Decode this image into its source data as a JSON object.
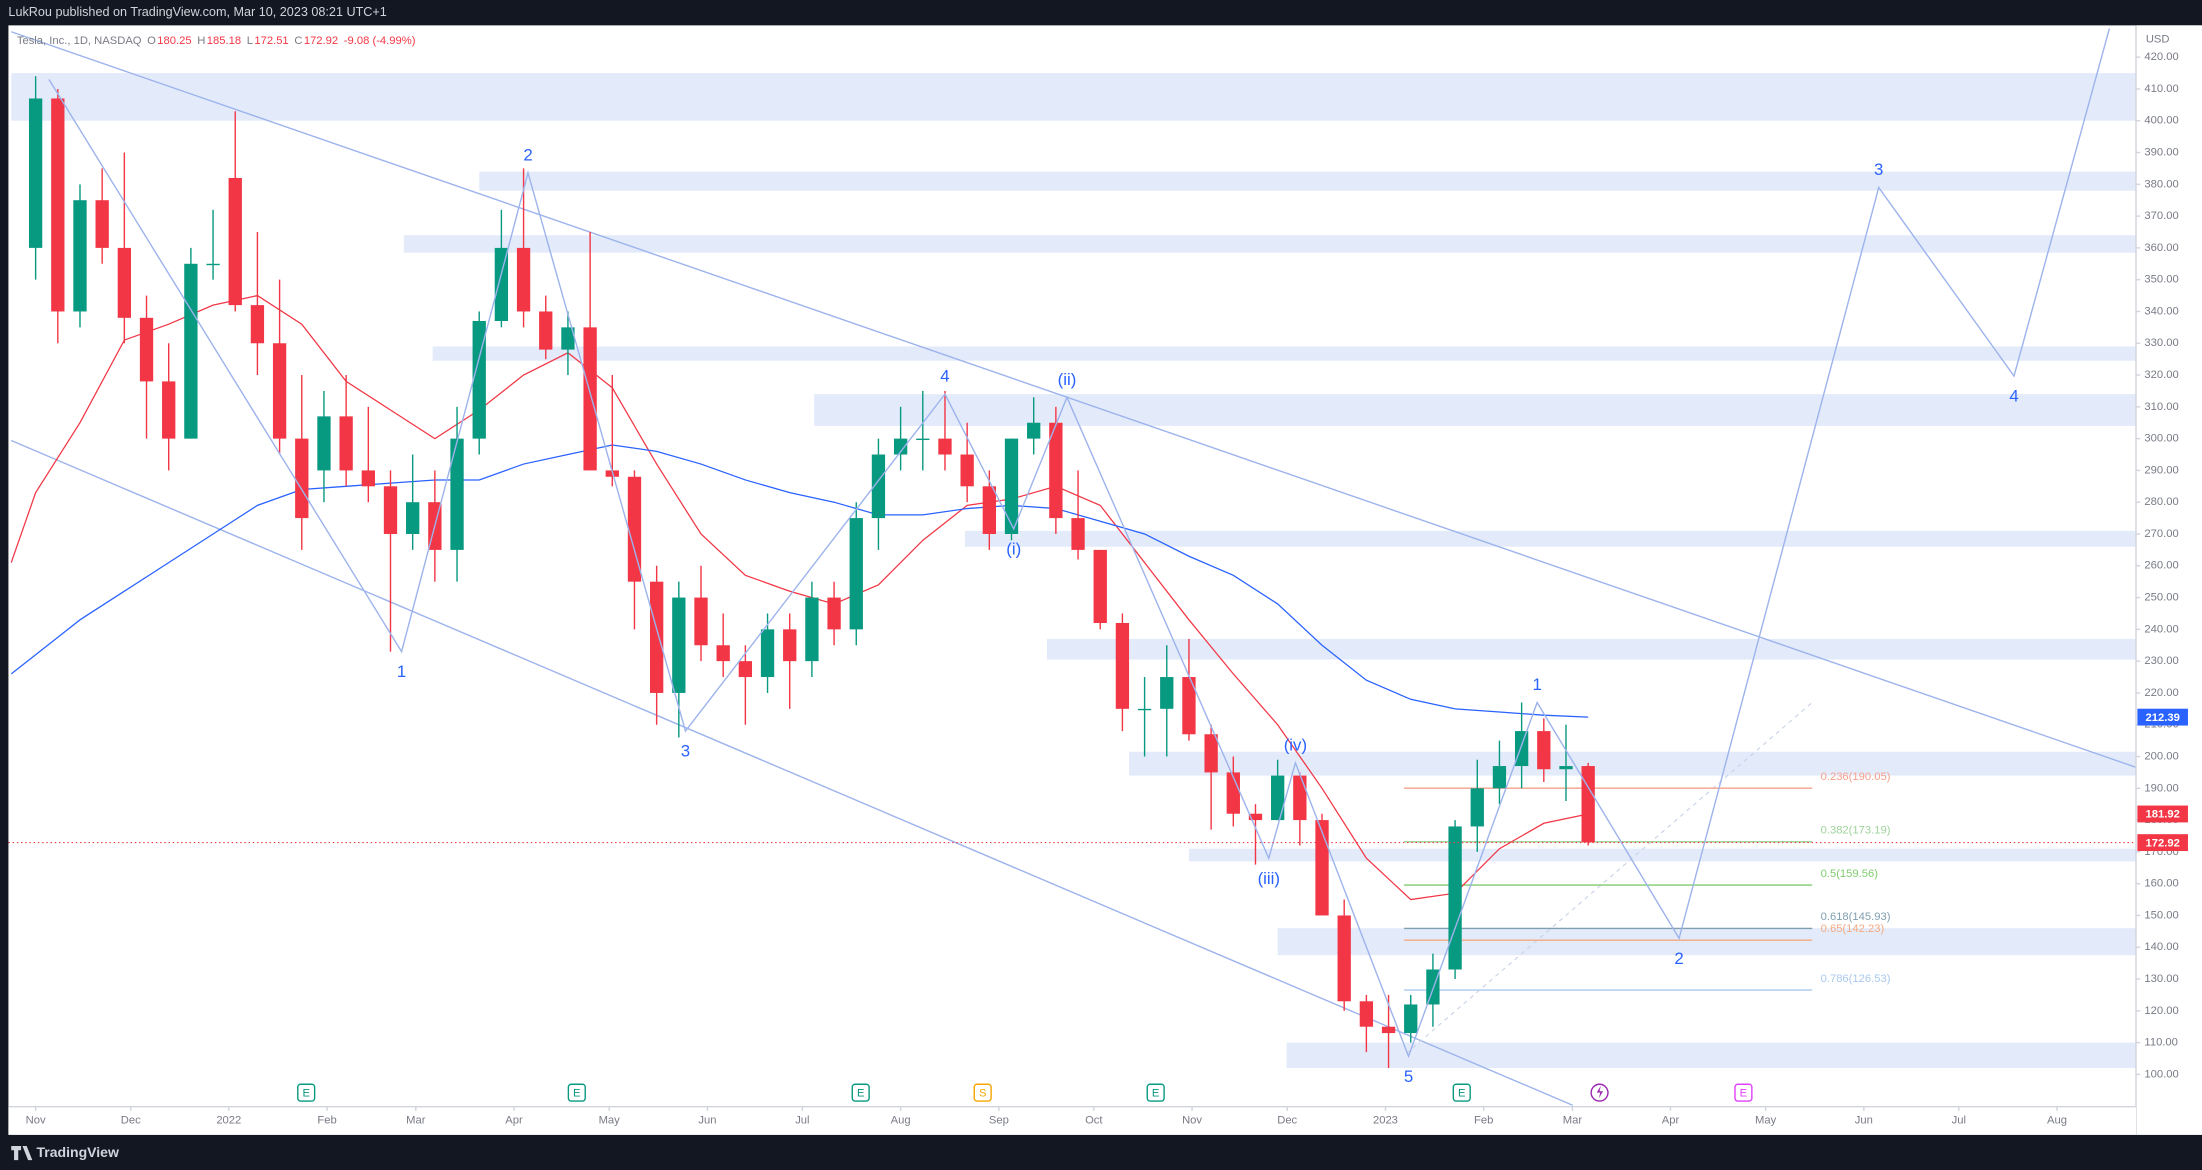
{
  "header": {
    "publisher": "LukRou published on TradingView.com, Mar 10, 2023 08:21 UTC+1"
  },
  "footer": {
    "brand": "TradingView"
  },
  "chart_data": {
    "type": "candlestick",
    "title": "Tesla, Inc., 1D, NASDAQ",
    "ohlc": [
      {
        "key": "O",
        "value": 180.25
      },
      {
        "key": "H",
        "value": 185.18
      },
      {
        "key": "L",
        "value": 172.51
      },
      {
        "key": "C",
        "value": 172.92
      }
    ],
    "change": "-9.08 (-4.99%)",
    "currency": "USD",
    "up_color": "#089981",
    "down_color": "#f23645",
    "x": [
      0,
      1,
      2,
      3,
      4,
      5,
      6,
      7,
      8,
      9,
      10,
      11,
      12,
      13,
      14,
      15,
      16,
      17,
      18,
      19,
      20,
      21,
      22,
      23,
      24,
      25,
      26,
      27,
      28,
      29,
      30,
      31,
      32,
      33,
      34,
      35,
      36,
      37,
      38,
      39,
      40,
      41,
      42,
      43,
      44,
      45,
      46,
      47,
      48,
      49,
      50,
      51,
      52,
      53,
      54,
      55,
      56,
      57,
      58,
      59,
      60,
      61,
      62,
      63,
      64,
      65,
      66,
      67,
      68,
      69,
      70
    ],
    "open": [
      360,
      407,
      340,
      375,
      360,
      338,
      318,
      300,
      355,
      382,
      342,
      330,
      300,
      290,
      307,
      290,
      285,
      270,
      280,
      265,
      300,
      337,
      360,
      340,
      328,
      335,
      290,
      288,
      255,
      220,
      250,
      235,
      230,
      225,
      240,
      230,
      250,
      240,
      275,
      295,
      300,
      300,
      295,
      285,
      270,
      300,
      305,
      275,
      265,
      242,
      215,
      215,
      225,
      207,
      195,
      182,
      180,
      194,
      180,
      150,
      123,
      115,
      113,
      122,
      133,
      178,
      190,
      197,
      208,
      196,
      197
    ],
    "high": [
      414,
      410,
      380,
      385,
      390,
      345,
      330,
      360,
      372,
      403,
      365,
      350,
      320,
      315,
      320,
      310,
      290,
      295,
      290,
      310,
      340,
      372,
      385,
      345,
      340,
      365,
      320,
      290,
      260,
      255,
      260,
      245,
      235,
      245,
      245,
      255,
      255,
      280,
      300,
      310,
      315,
      315,
      305,
      290,
      300,
      313,
      310,
      290,
      265,
      245,
      225,
      235,
      237,
      210,
      200,
      185,
      199,
      195,
      182,
      155,
      125,
      125,
      125,
      138,
      180,
      199,
      205,
      217,
      212,
      210,
      198
    ],
    "low": [
      350,
      330,
      335,
      355,
      330,
      300,
      290,
      300,
      350,
      340,
      320,
      295,
      265,
      280,
      285,
      280,
      233,
      265,
      255,
      255,
      295,
      335,
      335,
      325,
      320,
      290,
      285,
      240,
      210,
      206,
      230,
      225,
      210,
      220,
      215,
      225,
      235,
      235,
      265,
      290,
      290,
      290,
      280,
      265,
      268,
      295,
      270,
      262,
      240,
      208,
      200,
      200,
      205,
      177,
      178,
      166,
      180,
      172,
      150,
      120,
      107,
      102,
      110,
      115,
      130,
      170,
      185,
      190,
      192,
      186,
      172
    ],
    "close": [
      407,
      340,
      375,
      360,
      338,
      318,
      300,
      355,
      355,
      342,
      330,
      300,
      275,
      307,
      290,
      285,
      270,
      280,
      265,
      300,
      337,
      360,
      340,
      328,
      335,
      290,
      288,
      255,
      220,
      250,
      235,
      230,
      225,
      240,
      230,
      250,
      240,
      275,
      295,
      300,
      300,
      295,
      285,
      270,
      300,
      305,
      275,
      265,
      242,
      215,
      215,
      225,
      207,
      195,
      182,
      180,
      194,
      180,
      150,
      123,
      115,
      113,
      122,
      133,
      178,
      190,
      197,
      208,
      196,
      197,
      173
    ],
    "series": [
      {
        "color": "#f23645",
        "x": [
          -1.1,
          0,
          2,
          4,
          6,
          8,
          10,
          12,
          14,
          16,
          18,
          20,
          22,
          24,
          26,
          28,
          30,
          32,
          34,
          36,
          38,
          40,
          42,
          44,
          46,
          48,
          50,
          52,
          54,
          56,
          58,
          60,
          62,
          64,
          66,
          68,
          70
        ],
        "values": [
          261,
          283,
          305,
          331,
          336,
          342,
          345,
          336,
          318,
          309,
          300,
          309,
          320,
          327,
          316,
          292,
          270,
          257,
          252,
          248,
          254,
          268,
          279,
          281,
          285,
          279,
          261,
          243,
          226,
          210,
          190,
          168,
          155,
          157,
          171,
          179,
          181.92
        ]
      },
      {
        "color": "#2962ff",
        "x": [
          -1.1,
          0,
          2,
          4,
          6,
          8,
          10,
          12,
          14,
          16,
          18,
          20,
          22,
          24,
          26,
          28,
          30,
          32,
          34,
          36,
          38,
          40,
          42,
          44,
          46,
          48,
          50,
          52,
          54,
          56,
          58,
          60,
          62,
          64,
          66,
          68,
          70
        ],
        "values": [
          226,
          232,
          243,
          252,
          261,
          270,
          279,
          284,
          285,
          286,
          287,
          287,
          292,
          295,
          298,
          296,
          292,
          287,
          283,
          280,
          276,
          276,
          278,
          279,
          278,
          274,
          270,
          263,
          257,
          248,
          235,
          224,
          218,
          215,
          214,
          213,
          212.39
        ]
      }
    ],
    "price_labels": [
      {
        "value": 212.39,
        "color": "#2962ff"
      },
      {
        "value": 181.92,
        "color": "#f23645"
      },
      {
        "value": 172.92,
        "color": "#f23645",
        "dotted": true
      }
    ],
    "zone_color": "#e3ebfb",
    "zones": [
      {
        "x": -1.1,
        "low": 400,
        "high": 415
      },
      {
        "x": 20,
        "low": 378,
        "high": 384
      },
      {
        "x": 16.6,
        "low": 358.5,
        "high": 364
      },
      {
        "x": 17.9,
        "low": 324.5,
        "high": 329
      },
      {
        "x": 35.1,
        "low": 304,
        "high": 314
      },
      {
        "x": 41.9,
        "low": 266,
        "high": 271
      },
      {
        "x": 45.6,
        "low": 230.5,
        "high": 237
      },
      {
        "x": 49.3,
        "low": 194,
        "high": 201.5
      },
      {
        "x": 52,
        "low": 167,
        "high": 171
      },
      {
        "x": 56,
        "low": 137.5,
        "high": 146
      },
      {
        "x": 56.4,
        "low": 102,
        "high": 110
      }
    ],
    "fib_x": [
      61.7,
      80.1
    ],
    "fib_levels": [
      {
        "value": 190.05,
        "label": "0.236(190.05)",
        "color": "#f7a08a"
      },
      {
        "value": 173.19,
        "label": "0.382(173.19)",
        "color": "#9ed49a"
      },
      {
        "value": 159.56,
        "label": "0.5(159.56)",
        "color": "#7fcc6e"
      },
      {
        "value": 145.93,
        "label": "0.618(145.93)",
        "color": "#7f9fb0"
      },
      {
        "value": 142.23,
        "label": "0.65(142.23)",
        "color": "#f5a97f"
      },
      {
        "value": 126.53,
        "label": "0.786(126.53)",
        "color": "#a9c8ef"
      }
    ],
    "wave": {
      "color": "#9db3ec",
      "label_color": "#2962ff",
      "x": [
        0.6,
        16.5,
        22.2,
        29.3,
        41,
        44.1,
        46.5,
        55.6,
        56.8,
        61.9,
        67.7,
        74.1,
        83.1,
        89.2,
        93.5
      ],
      "y": [
        413,
        233,
        383.6,
        208,
        314,
        271.6,
        313,
        168,
        198,
        105.7,
        217,
        142.8,
        379,
        319.7,
        429
      ],
      "labels": [
        null,
        "1",
        "2",
        "3",
        "4",
        "(i)",
        "(ii)",
        "(iii)",
        "(iv)",
        "5",
        "1",
        "2",
        "3",
        "4",
        null
      ],
      "label_pos": [
        null,
        "below",
        "above",
        "below",
        "above",
        "below",
        "above",
        "below",
        "above",
        "below",
        "above",
        "below",
        "above",
        "below",
        null
      ]
    },
    "trendlines": [
      {
        "x": [
          -1.1,
          94.7
        ],
        "y": [
          428,
          196.6
        ],
        "color": "#9db3ec",
        "dashed": false
      },
      {
        "x": [
          -1.1,
          69.3
        ],
        "y": [
          299.4,
          90.3
        ],
        "color": "#9db3ec",
        "dashed": false
      },
      {
        "x": [
          61.8,
          80.1
        ],
        "y": [
          106.6,
          217
        ],
        "color": "#c8d3e6",
        "dashed": true
      }
    ],
    "events": [
      {
        "x": 12.2,
        "label": "E",
        "color": "#089981"
      },
      {
        "x": 24.4,
        "label": "E",
        "color": "#089981"
      },
      {
        "x": 37.2,
        "label": "E",
        "color": "#089981"
      },
      {
        "x": 42.7,
        "label": "S",
        "color": "#f7a600"
      },
      {
        "x": 50.5,
        "label": "E",
        "color": "#089981"
      },
      {
        "x": 64.3,
        "label": "E",
        "color": "#089981"
      },
      {
        "x": 77,
        "label": "E",
        "color": "#e040fb"
      }
    ],
    "xlim": [
      -1.1,
      94.7
    ],
    "ylim": [
      81,
      430
    ],
    "xticks": [
      {
        "value": 0,
        "label": "Nov"
      },
      {
        "value": 4.29,
        "label": "Dec"
      },
      {
        "value": 8.71,
        "label": "2022"
      },
      {
        "value": 13.14,
        "label": "Feb"
      },
      {
        "value": 17.14,
        "label": "Mar"
      },
      {
        "value": 21.57,
        "label": "Apr"
      },
      {
        "value": 25.86,
        "label": "May"
      },
      {
        "value": 30.29,
        "label": "Jun"
      },
      {
        "value": 34.57,
        "label": "Jul"
      },
      {
        "value": 39,
        "label": "Aug"
      },
      {
        "value": 43.43,
        "label": "Sep"
      },
      {
        "value": 47.71,
        "label": "Oct"
      },
      {
        "value": 52.14,
        "label": "Nov"
      },
      {
        "value": 56.43,
        "label": "Dec"
      },
      {
        "value": 60.86,
        "label": "2023"
      },
      {
        "value": 65.29,
        "label": "Feb"
      },
      {
        "value": 69.29,
        "label": "Mar"
      },
      {
        "value": 73.71,
        "label": "Apr"
      },
      {
        "value": 78,
        "label": "May"
      },
      {
        "value": 82.43,
        "label": "Jun"
      },
      {
        "value": 86.71,
        "label": "Jul"
      },
      {
        "value": 91.14,
        "label": "Aug"
      }
    ],
    "yticks": [
      {
        "value": 100,
        "label": "100.00"
      },
      {
        "value": 110,
        "label": "110.00"
      },
      {
        "value": 120,
        "label": "120.00"
      },
      {
        "value": 130,
        "label": "130.00"
      },
      {
        "value": 140,
        "label": "140.00"
      },
      {
        "value": 150,
        "label": "150.00"
      },
      {
        "value": 160,
        "label": "160.00"
      },
      {
        "value": 170,
        "label": "170.00"
      },
      {
        "value": 180,
        "label": "180.00"
      },
      {
        "value": 190,
        "label": "190.00"
      },
      {
        "value": 200,
        "label": "200.00"
      },
      {
        "value": 210,
        "label": "210.00"
      },
      {
        "value": 220,
        "label": "220.00"
      },
      {
        "value": 230,
        "label": "230.00"
      },
      {
        "value": 240,
        "label": "240.00"
      },
      {
        "value": 250,
        "label": "250.00"
      },
      {
        "value": 260,
        "label": "260.00"
      },
      {
        "value": 270,
        "label": "270.00"
      },
      {
        "value": 280,
        "label": "280.00"
      },
      {
        "value": 290,
        "label": "290.00"
      },
      {
        "value": 300,
        "label": "300.00"
      },
      {
        "value": 310,
        "label": "310.00"
      },
      {
        "value": 320,
        "label": "320.00"
      },
      {
        "value": 330,
        "label": "330.00"
      },
      {
        "value": 340,
        "label": "340.00"
      },
      {
        "value": 350,
        "label": "350.00"
      },
      {
        "value": 360,
        "label": "360.00"
      },
      {
        "value": 370,
        "label": "370.00"
      },
      {
        "value": 380,
        "label": "380.00"
      },
      {
        "value": 390,
        "label": "390.00"
      },
      {
        "value": 400,
        "label": "400.00"
      },
      {
        "value": 410,
        "label": "410.00"
      },
      {
        "value": 420,
        "label": "420.00"
      }
    ],
    "grid": false
  }
}
